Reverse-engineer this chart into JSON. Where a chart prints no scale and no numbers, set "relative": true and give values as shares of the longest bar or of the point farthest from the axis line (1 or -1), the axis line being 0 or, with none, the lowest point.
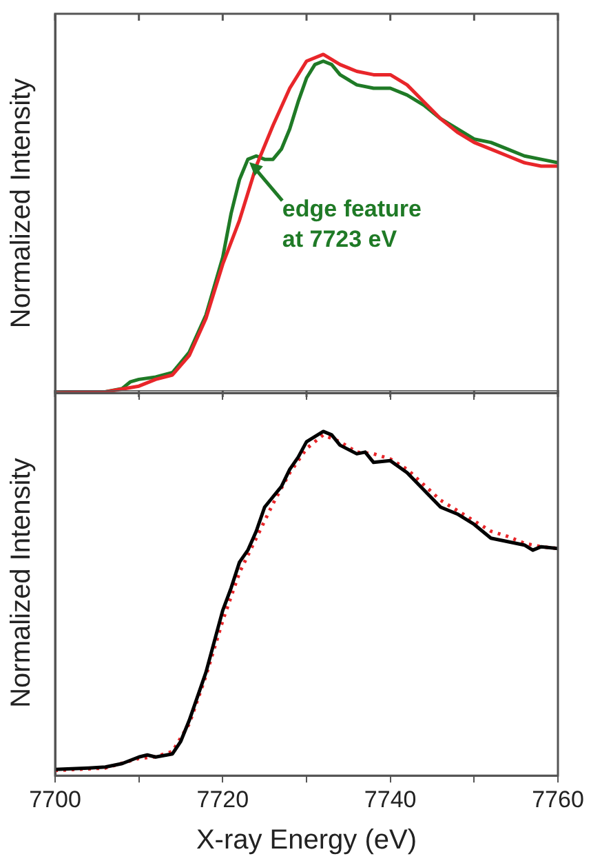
{
  "chart_data": [
    {
      "type": "line",
      "ylabel": "Normalized Intensity",
      "relative": true,
      "xlim": [
        7700,
        7760
      ],
      "xticks": [
        7700,
        7710,
        7720,
        7730,
        7740,
        7750,
        7760
      ],
      "tick_labels": false,
      "legend": false,
      "grid": false,
      "marker": "none",
      "annotations": [
        {
          "text": "edge feature at 7723 eV",
          "x": 7723,
          "y": 0.69
        }
      ],
      "series": [
        {
          "color": "#e8262a",
          "line_style": "solid",
          "x": [
            7700,
            7706,
            7710,
            7712,
            7714,
            7716,
            7718,
            7720,
            7722,
            7724,
            7726,
            7728,
            7730,
            7732,
            7734,
            7736,
            7738,
            7740,
            7742,
            7744,
            7746,
            7748,
            7750,
            7752,
            7754,
            7756,
            7758,
            7760
          ],
          "values": [
            0,
            0.003,
            0.02,
            0.04,
            0.053,
            0.11,
            0.22,
            0.38,
            0.51,
            0.67,
            0.79,
            0.9,
            0.98,
            1,
            0.97,
            0.95,
            0.94,
            0.94,
            0.91,
            0.86,
            0.81,
            0.77,
            0.74,
            0.72,
            0.7,
            0.68,
            0.67,
            0.67
          ]
        },
        {
          "color": "#1f7a26",
          "line_style": "solid",
          "x": [
            7700,
            7706,
            7708,
            7709,
            7710,
            7712,
            7714,
            7716,
            7718,
            7720,
            7721,
            7722,
            7723,
            7724,
            7725,
            7726,
            7727,
            7728,
            7729,
            7730,
            7731,
            7732,
            7733,
            7734,
            7736,
            7738,
            7740,
            7742,
            7744,
            7746,
            7748,
            7750,
            7752,
            7754,
            7756,
            7758,
            7760
          ],
          "values": [
            0,
            0.003,
            0.013,
            0.033,
            0.04,
            0.047,
            0.06,
            0.12,
            0.23,
            0.4,
            0.53,
            0.63,
            0.69,
            0.7,
            0.69,
            0.69,
            0.72,
            0.78,
            0.86,
            0.93,
            0.97,
            0.98,
            0.97,
            0.94,
            0.91,
            0.9,
            0.9,
            0.88,
            0.85,
            0.81,
            0.78,
            0.75,
            0.74,
            0.72,
            0.7,
            0.69,
            0.68
          ]
        }
      ]
    },
    {
      "type": "line",
      "xlabel": "X-ray Energy (eV)",
      "ylabel": "Normalized Intensity",
      "relative": true,
      "xlim": [
        7700,
        7760
      ],
      "xticks": [
        7700,
        {
          "value": 7710,
          "label": null
        },
        7720,
        {
          "value": 7730,
          "label": null
        },
        7740,
        {
          "value": 7750,
          "label": null
        },
        7760
      ],
      "tick_labels": "x",
      "legend": false,
      "grid": false,
      "marker": "none",
      "series": [
        {
          "color": "#000000",
          "line_style": "solid",
          "x": [
            7700,
            7704,
            7706,
            7708,
            7710,
            7711,
            7712,
            7714,
            7715,
            7716,
            7718,
            7720,
            7721,
            7722,
            7723,
            7724,
            7725,
            7726,
            7727,
            7728,
            7729,
            7730,
            7731,
            7732,
            7733,
            7734,
            7736,
            7737,
            7738,
            7740,
            7742,
            7744,
            7746,
            7748,
            7750,
            7752,
            7754,
            7756,
            7757,
            7758,
            7760
          ],
          "values": [
            0.018,
            0.022,
            0.025,
            0.035,
            0.054,
            0.06,
            0.054,
            0.063,
            0.1,
            0.16,
            0.3,
            0.48,
            0.545,
            0.62,
            0.655,
            0.71,
            0.78,
            0.81,
            0.84,
            0.89,
            0.925,
            0.97,
            0.985,
            1,
            0.99,
            0.96,
            0.935,
            0.94,
            0.91,
            0.915,
            0.88,
            0.83,
            0.78,
            0.76,
            0.73,
            0.69,
            0.68,
            0.67,
            0.655,
            0.665,
            0.66
          ]
        },
        {
          "color": "#e8262a",
          "line_style": "dotted",
          "x": [
            7700,
            7706,
            7710,
            7712,
            7714,
            7716,
            7718,
            7720,
            7722,
            7724,
            7726,
            7728,
            7730,
            7732,
            7734,
            7736,
            7738,
            7740,
            7742,
            7744,
            7746,
            7748,
            7750,
            7752,
            7754,
            7756,
            7758,
            7760
          ],
          "values": [
            0.015,
            0.022,
            0.05,
            0.055,
            0.07,
            0.15,
            0.29,
            0.45,
            0.59,
            0.69,
            0.79,
            0.88,
            0.95,
            0.99,
            0.97,
            0.94,
            0.935,
            0.92,
            0.89,
            0.845,
            0.8,
            0.77,
            0.74,
            0.71,
            0.695,
            0.675,
            0.665,
            0.66
          ]
        }
      ]
    }
  ]
}
